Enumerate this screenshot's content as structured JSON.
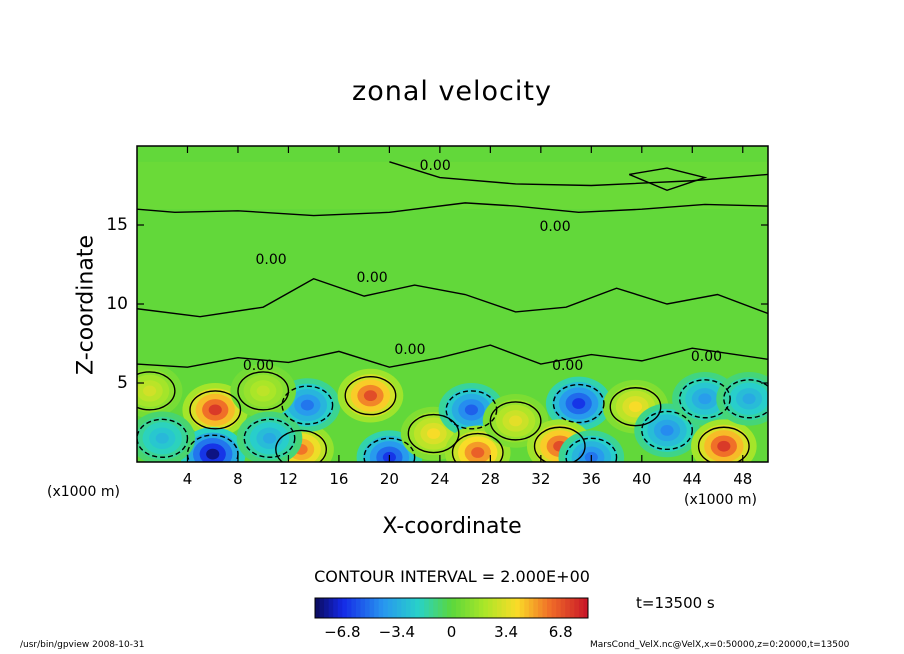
{
  "chart_data": {
    "type": "heatmap",
    "title": "zonal velocity",
    "xlabel": "X-coordinate",
    "ylabel": "Z-coordinate",
    "x_unit_left": "(x1000 m)",
    "x_unit_right": "(x1000 m)",
    "xlim": [
      0,
      50
    ],
    "ylim": [
      0,
      20
    ],
    "x_ticks": [
      4,
      8,
      12,
      16,
      20,
      24,
      28,
      32,
      36,
      40,
      44,
      48
    ],
    "y_ticks": [
      5,
      10,
      15
    ],
    "contour_label": "0.00",
    "contour_interval": "CONTOUR INTERVAL = 2.000E+00",
    "time_label": "t=13500 s",
    "colorbar": {
      "ticks": [
        -6.8,
        -3.4,
        0,
        3.4,
        6.8
      ],
      "tick_labels": [
        "−6.8",
        "−3.4",
        "0",
        "3.4",
        "6.8"
      ],
      "range": [
        -8.5,
        8.5
      ]
    },
    "features": [
      {
        "x": 6.2,
        "z": 3.3,
        "value": 7.5
      },
      {
        "x": 6.0,
        "z": 0.5,
        "value": -8.0
      },
      {
        "x": 13.0,
        "z": 0.8,
        "value": 6.0
      },
      {
        "x": 13.5,
        "z": 3.6,
        "value": -5.0
      },
      {
        "x": 18.5,
        "z": 4.2,
        "value": 7.0
      },
      {
        "x": 20.0,
        "z": 0.3,
        "value": -6.5
      },
      {
        "x": 23.5,
        "z": 1.8,
        "value": 4.0
      },
      {
        "x": 26.5,
        "z": 3.3,
        "value": -5.5
      },
      {
        "x": 27.0,
        "z": 0.6,
        "value": 6.5
      },
      {
        "x": 30.0,
        "z": 2.6,
        "value": 3.5
      },
      {
        "x": 35.0,
        "z": 3.7,
        "value": -6.5
      },
      {
        "x": 33.5,
        "z": 1.0,
        "value": 7.0
      },
      {
        "x": 36.0,
        "z": 0.3,
        "value": -5.0
      },
      {
        "x": 39.5,
        "z": 3.5,
        "value": 4.0
      },
      {
        "x": 42.0,
        "z": 2.0,
        "value": -4.5
      },
      {
        "x": 45.0,
        "z": 4.0,
        "value": -4.0
      },
      {
        "x": 46.5,
        "z": 1.0,
        "value": 7.5
      },
      {
        "x": 48.5,
        "z": 4.0,
        "value": -3.5
      },
      {
        "x": 1.0,
        "z": 4.5,
        "value": 3.0
      },
      {
        "x": 2.0,
        "z": 1.5,
        "value": -3.0
      },
      {
        "x": 10.0,
        "z": 4.5,
        "value": 2.5
      },
      {
        "x": 10.5,
        "z": 1.5,
        "value": -3.5
      }
    ],
    "grid": false,
    "legend": "colorbar-bottom"
  },
  "footer": {
    "program": "/usr/bin/gpview   2008-10-31",
    "source": "MarsCond_VelX.nc@VelX,x=0:50000,z=0:20000,t=13500"
  }
}
